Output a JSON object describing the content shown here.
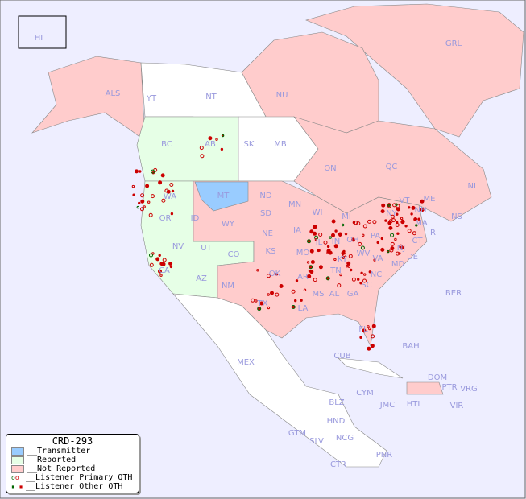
{
  "legend": {
    "title": "CRD-293",
    "items": [
      "__Transmitter",
      "__Reported",
      "__Not Reported",
      "__Listener Primary QTH",
      "__Listener Other QTH"
    ]
  },
  "colors": {
    "transmitter": "#99ccff",
    "reported": "#e6ffe6",
    "not_reported": "#ffcccc",
    "primary": "#cc0000",
    "primary_reported": "#006600",
    "water": "#eeeeff"
  },
  "map": {
    "regions": [
      "HI",
      "ALS",
      "YT",
      "NT",
      "NU",
      "GRL",
      "BC",
      "AB",
      "SK",
      "MB",
      "ON",
      "QC",
      "NL",
      "NS",
      "WA",
      "MT",
      "ND",
      "MN",
      "WI",
      "OR",
      "ID",
      "WY",
      "SD",
      "IA",
      "NV",
      "UT",
      "CO",
      "NE",
      "KS",
      "MO",
      "CA",
      "AZ",
      "NM",
      "OK",
      "AR",
      "TX",
      "LA",
      "MS",
      "AL",
      "GA",
      "TN",
      "KY",
      "IN",
      "OH",
      "PA",
      "NY",
      "NH",
      "ME",
      "MA",
      "CT",
      "NJ",
      "DE",
      "MD",
      "VA",
      "WV",
      "NC",
      "SC",
      "FL",
      "MEX",
      "CUB",
      "BAH",
      "BER",
      "CYM",
      "JMC",
      "HTI",
      "DOM",
      "PTR",
      "VRG",
      "VIR",
      "BLZ",
      "GTM",
      "HND",
      "SLV",
      "NCG",
      "CTR",
      "PNR",
      "IL",
      "MI",
      "RI",
      "VT"
    ]
  }
}
